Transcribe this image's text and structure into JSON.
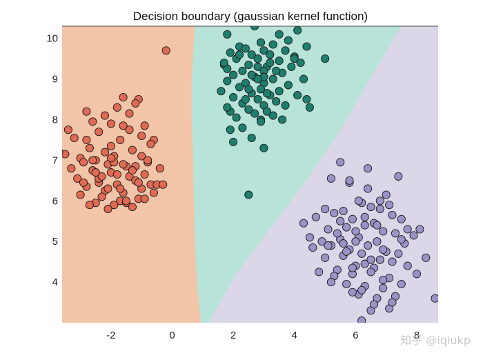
{
  "chart_data": {
    "type": "scatter",
    "title": "Decision boundary (gaussian kernel function)",
    "xlabel": "",
    "ylabel": "",
    "xlim": [
      -3.6,
      8.7
    ],
    "ylim": [
      3.0,
      10.3
    ],
    "xticks": [
      -2,
      0,
      2,
      4,
      6,
      8
    ],
    "yticks": [
      4,
      5,
      6,
      7,
      8,
      9,
      10
    ],
    "grid": false,
    "regions": [
      {
        "class": 1,
        "color": "#f2c4a8",
        "polygon": [
          [
            -3.6,
            3.0
          ],
          [
            -3.6,
            10.3
          ],
          [
            0.75,
            10.3
          ],
          [
            0.65,
            9.0
          ],
          [
            0.65,
            8.0
          ],
          [
            0.7,
            7.0
          ],
          [
            0.72,
            6.0
          ],
          [
            0.76,
            5.0
          ],
          [
            0.82,
            4.0
          ],
          [
            0.95,
            3.0
          ]
        ]
      },
      {
        "class": 2,
        "color": "#b7e3d8",
        "polygon": [
          [
            0.75,
            10.3
          ],
          [
            7.5,
            10.3
          ],
          [
            6.4,
            8.9
          ],
          [
            5.4,
            7.6
          ],
          [
            4.3,
            6.4
          ],
          [
            3.2,
            5.3
          ],
          [
            2.1,
            4.2
          ],
          [
            1.2,
            3.0
          ],
          [
            0.95,
            3.0
          ],
          [
            0.82,
            4.0
          ],
          [
            0.76,
            5.0
          ],
          [
            0.72,
            6.0
          ],
          [
            0.7,
            7.0
          ],
          [
            0.65,
            8.0
          ],
          [
            0.65,
            9.0
          ]
        ]
      },
      {
        "class": 3,
        "color": "#dbd7e8",
        "polygon": [
          [
            7.5,
            10.3
          ],
          [
            8.7,
            10.3
          ],
          [
            8.7,
            3.0
          ],
          [
            1.2,
            3.0
          ],
          [
            2.1,
            4.2
          ],
          [
            3.2,
            5.3
          ],
          [
            4.3,
            6.4
          ],
          [
            5.4,
            7.6
          ],
          [
            6.4,
            8.9
          ]
        ]
      }
    ],
    "series": [
      {
        "class": 1,
        "color": "#e06a53",
        "x": [
          -0.2,
          -1.6,
          -1.1,
          -2.8,
          -1.8,
          -1.4,
          -2.6,
          -3.4,
          -3.2,
          -2.0,
          -2.4,
          -1.2,
          -0.9,
          -1.7,
          -2.7,
          -2.2,
          -1.0,
          -0.6,
          -3.5,
          -3.0,
          -2.5,
          -1.9,
          -1.3,
          -0.7,
          -2.9,
          -2.1,
          -1.5,
          -0.8,
          -3.3,
          -2.6,
          -2.0,
          -1.4,
          -0.9,
          -0.4,
          -3.1,
          -2.4,
          -1.8,
          -1.2,
          -0.7,
          -2.8,
          -2.2,
          -1.6,
          -1.0,
          -0.5,
          -3.0,
          -2.3,
          -1.7,
          -1.1,
          -0.6,
          -2.5,
          -1.9,
          -1.3,
          -2.7,
          -2.1,
          -1.5,
          -0.9,
          -0.3,
          -2.4,
          -1.8,
          -1.2,
          -2.0,
          -1.4,
          -3.7,
          -2.8,
          -1.6,
          -2.2,
          -1.0,
          -2.6,
          -1.9,
          -1.3,
          -2.3,
          -1.7,
          -0.8,
          -2.9,
          -2.1,
          -1.5,
          -2.5,
          -1.1,
          -2.0,
          -1.6
        ],
        "y": [
          9.7,
          8.55,
          8.5,
          8.2,
          8.3,
          8.15,
          7.95,
          7.75,
          7.55,
          7.9,
          7.7,
          8.4,
          7.85,
          7.5,
          7.3,
          7.2,
          7.6,
          7.5,
          7.15,
          7.05,
          7.0,
          7.1,
          7.25,
          7.4,
          6.95,
          6.9,
          6.85,
          6.95,
          6.8,
          6.75,
          6.7,
          6.6,
          6.65,
          6.8,
          6.55,
          6.45,
          6.4,
          6.5,
          6.4,
          6.35,
          6.25,
          6.2,
          6.3,
          6.4,
          6.15,
          6.1,
          6.0,
          6.05,
          6.2,
          5.95,
          5.9,
          5.85,
          5.9,
          5.8,
          5.95,
          6.05,
          6.4,
          6.55,
          6.65,
          6.85,
          7.35,
          7.75,
          7.2,
          7.5,
          7.85,
          8.1,
          7.1,
          7.0,
          6.95,
          6.75,
          6.6,
          6.3,
          7.0,
          6.45,
          6.3,
          6.0,
          6.7,
          6.45,
          7.05,
          6.9
        ]
      },
      {
        "class": 2,
        "color": "#1f7f6e",
        "x": [
          2.7,
          4.1,
          3.5,
          1.8,
          3.8,
          2.9,
          2.2,
          3.3,
          4.4,
          2.4,
          3.0,
          3.7,
          1.9,
          2.6,
          3.2,
          4.0,
          2.1,
          2.8,
          3.5,
          4.2,
          1.7,
          2.5,
          3.1,
          3.9,
          2.3,
          3.0,
          3.6,
          2.0,
          2.7,
          3.3,
          4.3,
          1.8,
          2.4,
          3.0,
          3.8,
          2.2,
          2.9,
          3.5,
          1.6,
          2.6,
          3.2,
          4.1,
          2.0,
          2.8,
          3.4,
          2.3,
          3.0,
          3.7,
          4.5,
          2.5,
          3.1,
          1.9,
          2.7,
          3.3,
          2.1,
          2.9,
          3.6,
          4.4,
          2.4,
          3.0,
          1.8,
          2.6,
          3.2,
          2.2,
          2.8,
          3.4,
          4.0,
          1.7,
          2.5,
          3.1,
          2.9,
          2.3,
          1.9,
          2.0,
          2.6,
          3.0,
          2.8,
          1.8,
          5.0,
          2.5
        ],
        "y": [
          10.3,
          10.2,
          10.1,
          10.1,
          9.95,
          9.9,
          9.8,
          9.85,
          9.8,
          9.75,
          9.7,
          9.7,
          9.65,
          9.6,
          9.6,
          9.55,
          9.5,
          9.5,
          9.45,
          9.4,
          9.35,
          9.35,
          9.3,
          9.3,
          9.2,
          9.2,
          9.15,
          9.1,
          9.05,
          9.0,
          9.0,
          8.95,
          8.9,
          8.9,
          8.85,
          8.8,
          8.75,
          8.7,
          8.7,
          8.65,
          8.6,
          8.6,
          8.55,
          8.5,
          8.45,
          8.4,
          8.35,
          8.35,
          8.3,
          8.25,
          8.2,
          8.2,
          8.15,
          8.1,
          8.05,
          8.0,
          8.0,
          8.5,
          8.5,
          9.05,
          9.25,
          9.1,
          9.4,
          9.6,
          9.3,
          9.2,
          9.5,
          9.4,
          8.75,
          8.65,
          7.95,
          7.8,
          7.75,
          7.45,
          7.55,
          7.3,
          9.0,
          8.3,
          9.5,
          6.15
        ]
      },
      {
        "class": 3,
        "color": "#9b93c8",
        "x": [
          5.5,
          5.2,
          5.8,
          6.4,
          4.3,
          5.0,
          5.6,
          6.2,
          6.8,
          7.4,
          4.7,
          5.3,
          5.9,
          6.5,
          7.1,
          7.7,
          4.5,
          5.1,
          5.7,
          6.3,
          6.9,
          7.5,
          8.1,
          4.9,
          5.5,
          6.1,
          6.7,
          7.3,
          7.9,
          4.6,
          5.2,
          5.8,
          6.4,
          7.0,
          7.6,
          5.0,
          5.6,
          6.2,
          6.8,
          7.4,
          8.3,
          4.8,
          5.4,
          6.0,
          6.6,
          7.2,
          5.3,
          5.9,
          6.5,
          7.1,
          7.7,
          5.7,
          6.3,
          6.9,
          7.5,
          6.1,
          6.7,
          7.3,
          6.5,
          7.1,
          5.9,
          6.6,
          8.6,
          6.2,
          6.9,
          7.2,
          8.0,
          5.4,
          6.0,
          6.6,
          7.2,
          5.1,
          5.7,
          6.3,
          6.9,
          7.5,
          5.5,
          6.1,
          6.8,
          7.0,
          6.4,
          5.8,
          6.3,
          6.7,
          5.6,
          6.0,
          6.5,
          5.2,
          5.9,
          6.2
        ],
        "y": [
          6.95,
          6.55,
          6.45,
          6.8,
          5.45,
          5.8,
          5.75,
          5.95,
          6.0,
          6.6,
          5.6,
          5.7,
          5.55,
          5.85,
          5.9,
          5.3,
          5.1,
          5.3,
          5.35,
          5.4,
          5.25,
          5.55,
          5.3,
          5.0,
          5.05,
          5.1,
          5.0,
          5.2,
          5.15,
          4.85,
          4.9,
          4.8,
          4.9,
          4.75,
          4.95,
          4.6,
          4.65,
          4.7,
          4.55,
          4.7,
          4.6,
          4.25,
          4.3,
          4.4,
          4.35,
          4.5,
          4.15,
          4.2,
          4.25,
          4.1,
          4.4,
          3.95,
          3.9,
          4.05,
          3.95,
          3.7,
          3.6,
          3.65,
          3.3,
          3.35,
          3.75,
          3.45,
          3.6,
          3.05,
          3.85,
          3.5,
          4.2,
          5.2,
          5.25,
          5.45,
          5.65,
          4.9,
          4.75,
          4.45,
          4.8,
          5.05,
          5.5,
          6.0,
          5.8,
          6.15,
          6.3,
          6.5,
          5.6,
          5.4,
          4.95,
          5.0,
          4.55,
          4.0,
          4.35,
          3.8
        ]
      }
    ],
    "watermark": "知乎 @iqiukp"
  }
}
